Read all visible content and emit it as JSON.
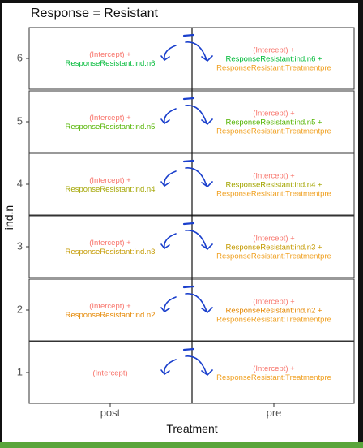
{
  "facet_title": "Response = Resistant",
  "colors": {
    "intercept": "#f8766d",
    "ind_green_dark": "#00ba38",
    "ind_green": "#53b400",
    "ind_olive": "#a3a500",
    "ind_amber": "#c49a00",
    "ind_orange": "#e58700",
    "treatment": "#f0a020",
    "ink": "#1a3fcc"
  },
  "chart_data": {
    "type": "table",
    "title": "Response = Resistant",
    "xlabel": "Treatment",
    "ylabel": "ind.n",
    "x_categories": [
      "post",
      "pre"
    ],
    "y_categories": [
      "1",
      "2",
      "3",
      "4",
      "5",
      "6"
    ],
    "grid": true,
    "cells": [
      {
        "ind": "6",
        "post": [
          {
            "text": "(Intercept) +",
            "color": "intercept"
          },
          {
            "text": "ResponseResistant:ind.n6",
            "color": "ind_green_dark"
          }
        ],
        "pre": [
          {
            "text": "(Intercept) +",
            "color": "intercept"
          },
          {
            "text": "ResponseResistant:ind.n6 +",
            "color": "ind_green_dark"
          },
          {
            "text": "ResponseResistant:Treatmentpre",
            "color": "treatment"
          }
        ]
      },
      {
        "ind": "5",
        "post": [
          {
            "text": "(Intercept) +",
            "color": "intercept"
          },
          {
            "text": "ResponseResistant:ind.n5",
            "color": "ind_green"
          }
        ],
        "pre": [
          {
            "text": "(Intercept) +",
            "color": "intercept"
          },
          {
            "text": "ResponseResistant:ind.n5 +",
            "color": "ind_green"
          },
          {
            "text": "ResponseResistant:Treatmentpre",
            "color": "treatment"
          }
        ]
      },
      {
        "ind": "4",
        "post": [
          {
            "text": "(Intercept) +",
            "color": "intercept"
          },
          {
            "text": "ResponseResistant:ind.n4",
            "color": "ind_olive"
          }
        ],
        "pre": [
          {
            "text": "(Intercept) +",
            "color": "intercept"
          },
          {
            "text": "ResponseResistant:ind.n4 +",
            "color": "ind_olive"
          },
          {
            "text": "ResponseResistant:Treatmentpre",
            "color": "treatment"
          }
        ]
      },
      {
        "ind": "3",
        "post": [
          {
            "text": "(Intercept) +",
            "color": "intercept"
          },
          {
            "text": "ResponseResistant:ind.n3",
            "color": "ind_amber"
          }
        ],
        "pre": [
          {
            "text": "(Intercept) +",
            "color": "intercept"
          },
          {
            "text": "ResponseResistant:ind.n3 +",
            "color": "ind_amber"
          },
          {
            "text": "ResponseResistant:Treatmentpre",
            "color": "treatment"
          }
        ]
      },
      {
        "ind": "2",
        "post": [
          {
            "text": "(Intercept) +",
            "color": "intercept"
          },
          {
            "text": "ResponseResistant:ind.n2",
            "color": "ind_orange"
          }
        ],
        "pre": [
          {
            "text": "(Intercept) +",
            "color": "intercept"
          },
          {
            "text": "ResponseResistant:ind.n2 +",
            "color": "ind_orange"
          },
          {
            "text": "ResponseResistant:Treatmentpre",
            "color": "treatment"
          }
        ]
      },
      {
        "ind": "1",
        "post": [
          {
            "text": "(Intercept)",
            "color": "intercept"
          }
        ],
        "pre": [
          {
            "text": "(Intercept) +",
            "color": "intercept"
          },
          {
            "text": "ResponseResistant:Treatmentpre",
            "color": "treatment"
          }
        ]
      }
    ]
  }
}
